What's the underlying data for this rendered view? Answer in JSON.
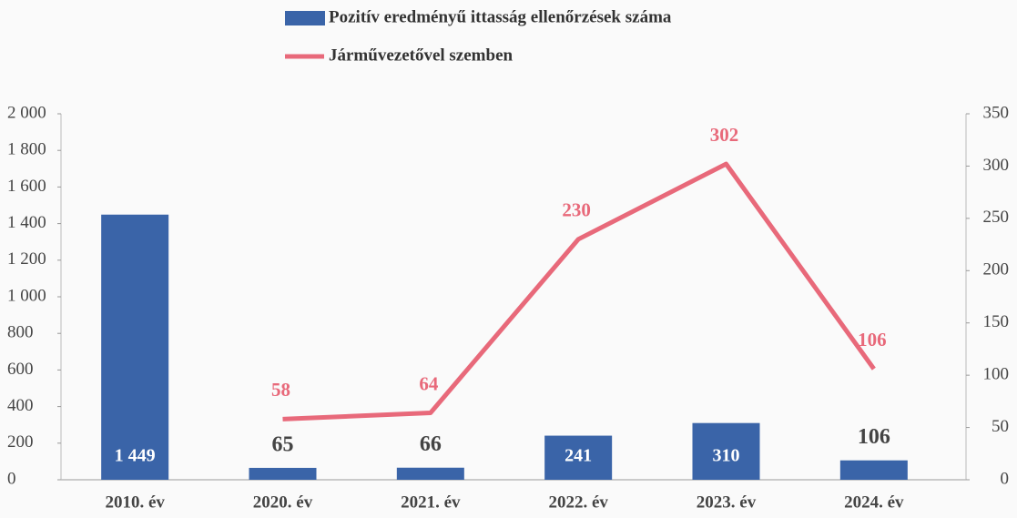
{
  "chart_data": {
    "type": "bar-line",
    "categories": [
      "2010. év",
      "2020. év",
      "2021. év",
      "2022. év",
      "2023. év",
      "2024. év"
    ],
    "series": [
      {
        "name": "Pozitív eredményű ittasság ellenőrzések száma",
        "type": "bar",
        "color": "#3a64a8",
        "values": [
          1449,
          65,
          66,
          241,
          310,
          106
        ],
        "value_labels": [
          "1 449",
          "65",
          "66",
          "241",
          "310",
          "106"
        ]
      },
      {
        "name": "Járművezetővel szemben",
        "type": "line",
        "axis": "y2",
        "color": "#e8697a",
        "values": [
          null,
          58,
          64,
          230,
          302,
          106
        ]
      }
    ],
    "ylim": [
      0,
      2000
    ],
    "yticks": [
      0,
      200,
      400,
      600,
      800,
      {
        "value": 1000,
        "label": "1 000"
      },
      {
        "value": 1200,
        "label": "1 200"
      },
      {
        "value": 1400,
        "label": "1 400"
      },
      {
        "value": 1600,
        "label": "1 600"
      },
      {
        "value": 1800,
        "label": "1 800"
      },
      {
        "value": 2000,
        "label": "2 000"
      }
    ],
    "y2lim": [
      0,
      350
    ],
    "y2ticks": [
      0,
      50,
      100,
      150,
      200,
      250,
      300,
      350
    ],
    "legend": "top"
  }
}
